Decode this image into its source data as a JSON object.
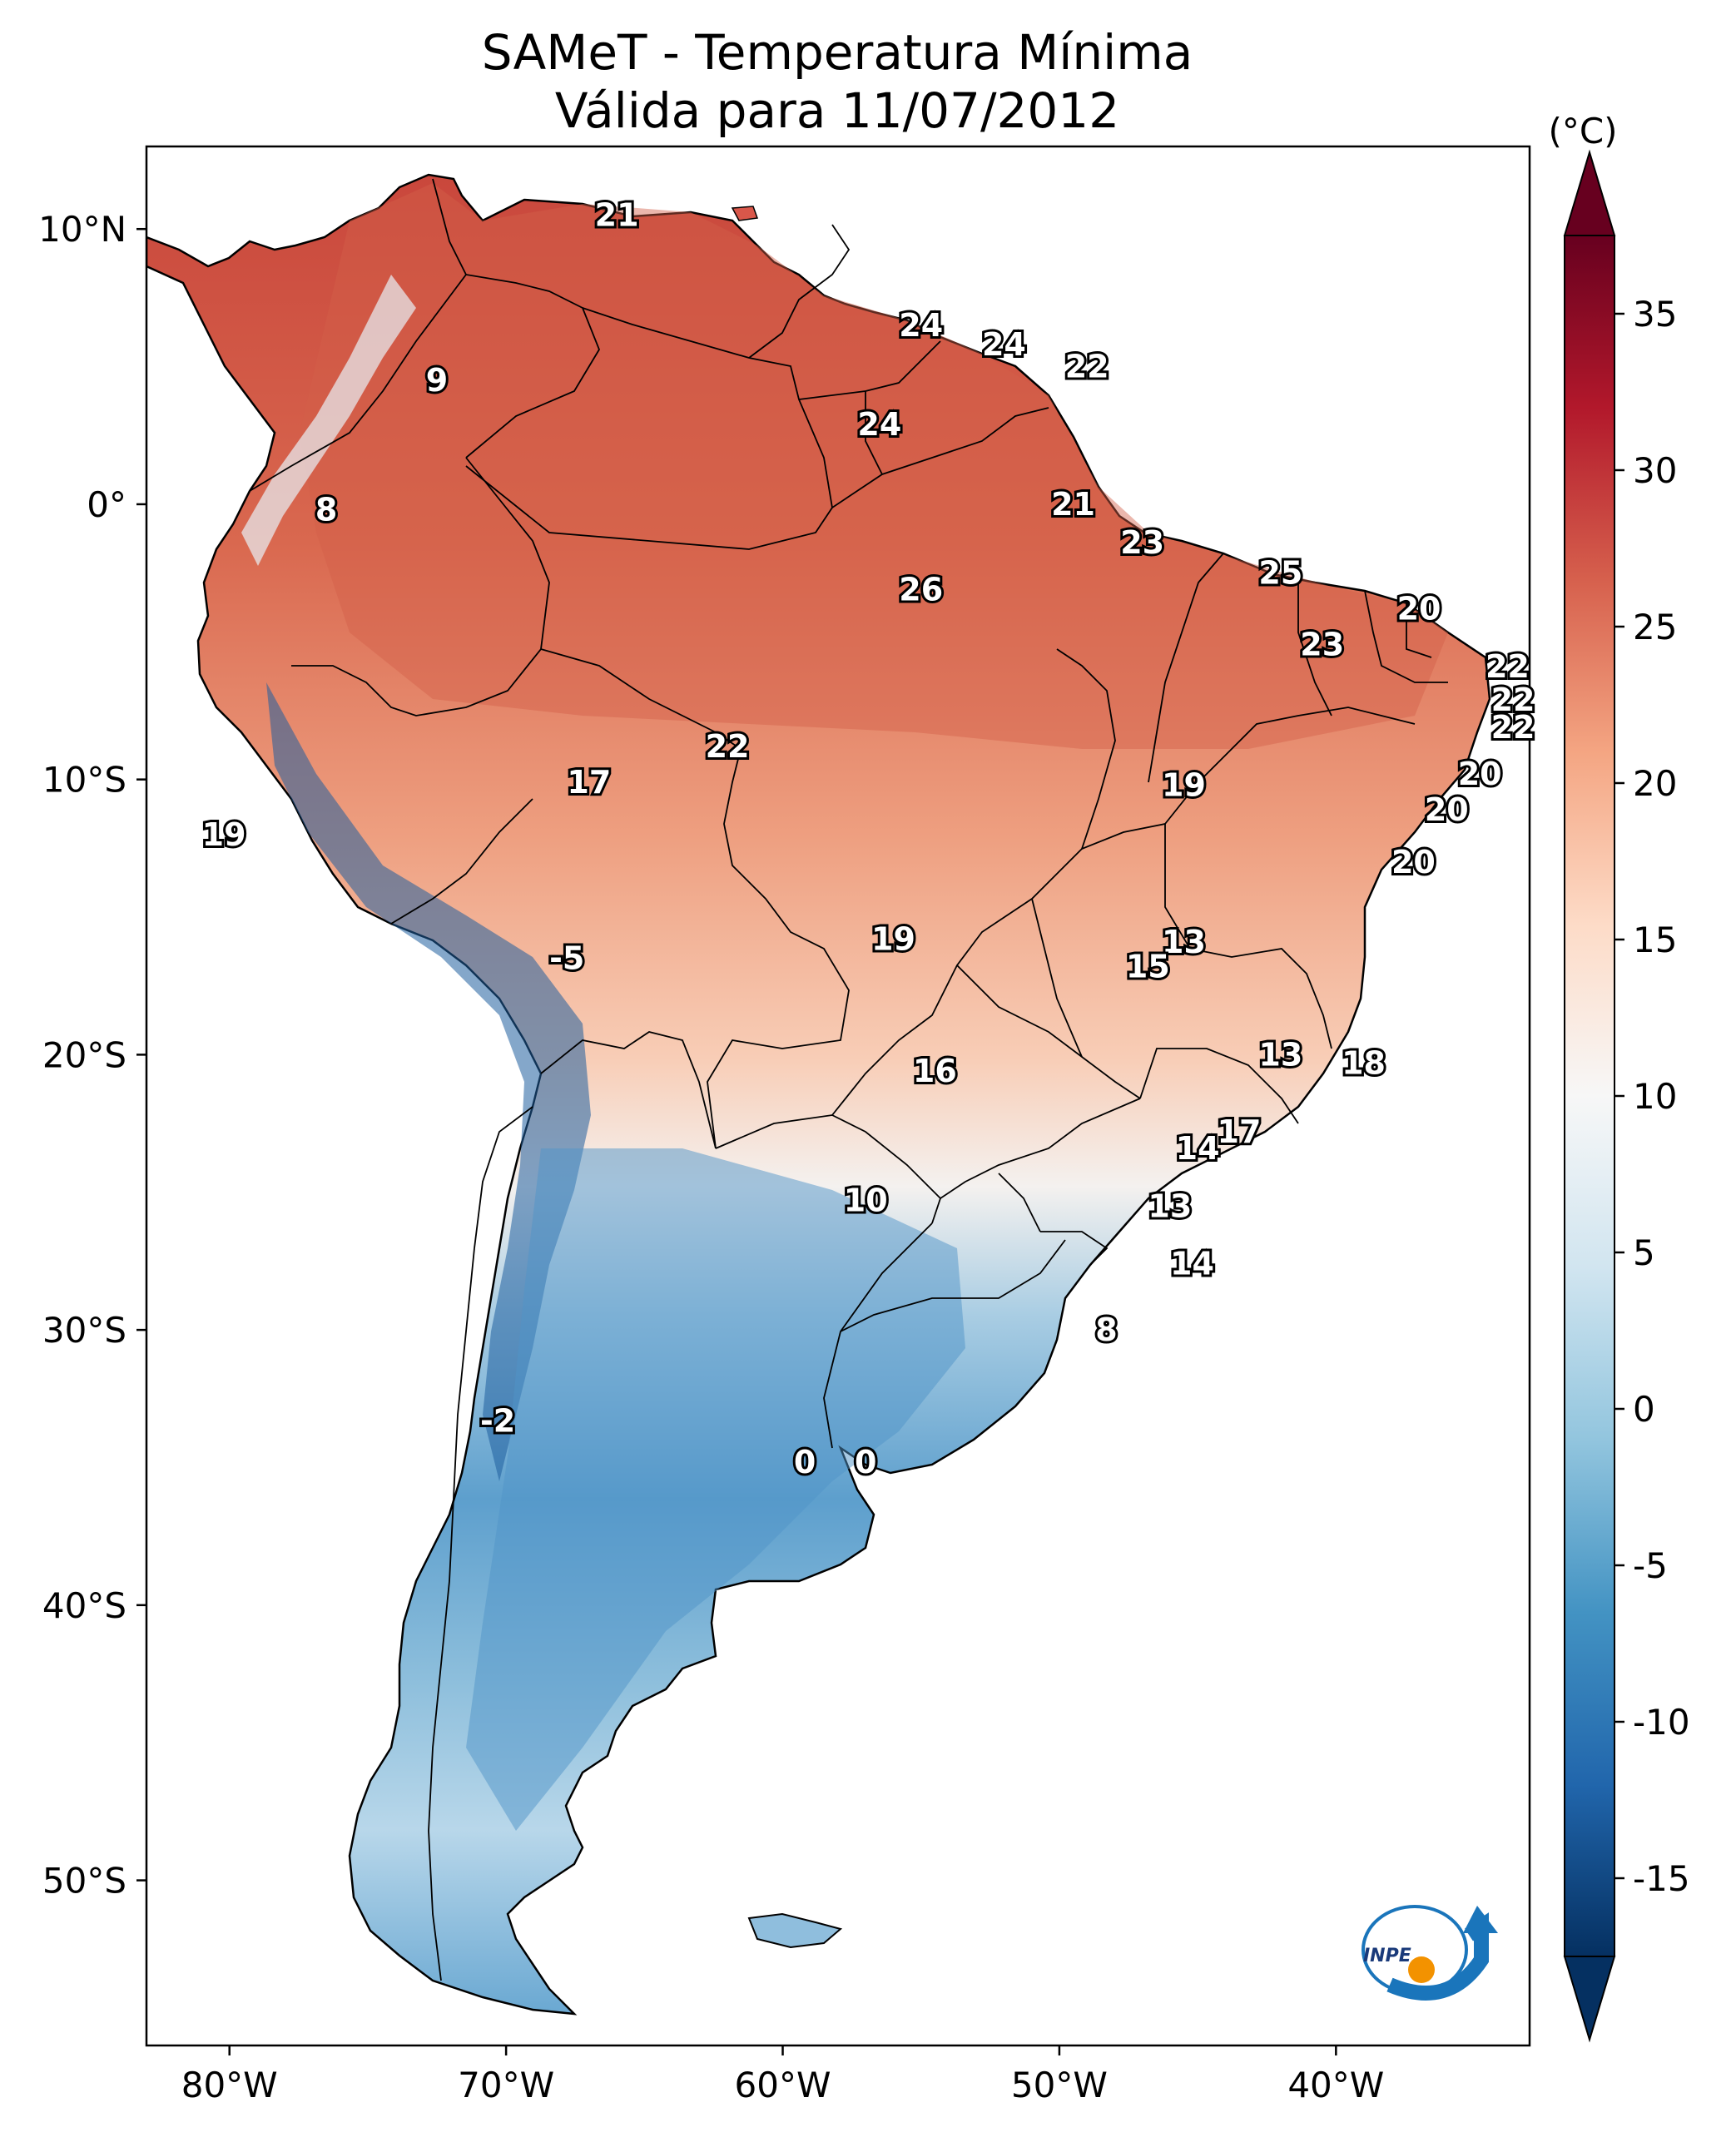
{
  "title": {
    "line1": "SAMeT - Temperatura Mínima",
    "line2": "Válida para 11/07/2012"
  },
  "map": {
    "lon_range": [
      -83,
      -33
    ],
    "lat_range": [
      -56,
      13
    ],
    "lon_ticks": [
      "80°W",
      "70°W",
      "60°W",
      "50°W",
      "40°W"
    ],
    "lat_ticks": [
      "10°N",
      "0°",
      "10°S",
      "20°S",
      "30°S",
      "40°S",
      "50°S"
    ],
    "station_values": [
      {
        "lon": -66.0,
        "lat": 10.5,
        "value": "21"
      },
      {
        "lon": -55.0,
        "lat": 6.5,
        "value": "24"
      },
      {
        "lon": -52.0,
        "lat": 5.8,
        "value": "24"
      },
      {
        "lon": -49.0,
        "lat": 5.0,
        "value": "22"
      },
      {
        "lon": -72.5,
        "lat": 4.5,
        "value": "9"
      },
      {
        "lon": -56.5,
        "lat": 2.9,
        "value": "24"
      },
      {
        "lon": -76.5,
        "lat": -0.2,
        "value": "8"
      },
      {
        "lon": -49.5,
        "lat": 0.0,
        "value": "21"
      },
      {
        "lon": -47.0,
        "lat": -1.4,
        "value": "23"
      },
      {
        "lon": -55.0,
        "lat": -3.1,
        "value": "26"
      },
      {
        "lon": -42.0,
        "lat": -2.5,
        "value": "25"
      },
      {
        "lon": -37.0,
        "lat": -3.8,
        "value": "20"
      },
      {
        "lon": -40.5,
        "lat": -5.1,
        "value": "23"
      },
      {
        "lon": -33.8,
        "lat": -5.9,
        "value": "22"
      },
      {
        "lon": -33.6,
        "lat": -7.1,
        "value": "22"
      },
      {
        "lon": -33.6,
        "lat": -8.1,
        "value": "22"
      },
      {
        "lon": -62.0,
        "lat": -8.8,
        "value": "22"
      },
      {
        "lon": -67.0,
        "lat": -10.1,
        "value": "17"
      },
      {
        "lon": -45.5,
        "lat": -10.2,
        "value": "19"
      },
      {
        "lon": -34.8,
        "lat": -9.8,
        "value": "20"
      },
      {
        "lon": -36.0,
        "lat": -11.1,
        "value": "20"
      },
      {
        "lon": -37.2,
        "lat": -13.0,
        "value": "20"
      },
      {
        "lon": -80.2,
        "lat": -12.0,
        "value": "19"
      },
      {
        "lon": -56.0,
        "lat": -15.8,
        "value": "19"
      },
      {
        "lon": -45.5,
        "lat": -15.9,
        "value": "13"
      },
      {
        "lon": -46.8,
        "lat": -16.8,
        "value": "15"
      },
      {
        "lon": -67.8,
        "lat": -16.5,
        "value": "-5"
      },
      {
        "lon": -54.5,
        "lat": -20.6,
        "value": "16"
      },
      {
        "lon": -42.0,
        "lat": -20.0,
        "value": "13"
      },
      {
        "lon": -39.0,
        "lat": -20.3,
        "value": "18"
      },
      {
        "lon": -43.5,
        "lat": -22.8,
        "value": "17"
      },
      {
        "lon": -45.0,
        "lat": -23.4,
        "value": "14"
      },
      {
        "lon": -57.0,
        "lat": -25.3,
        "value": "10"
      },
      {
        "lon": -46.0,
        "lat": -25.5,
        "value": "13"
      },
      {
        "lon": -45.2,
        "lat": -27.6,
        "value": "14"
      },
      {
        "lon": -48.3,
        "lat": -30.0,
        "value": "8"
      },
      {
        "lon": -70.3,
        "lat": -33.3,
        "value": "-2"
      },
      {
        "lon": -59.2,
        "lat": -34.8,
        "value": "0"
      },
      {
        "lon": -57.0,
        "lat": -34.8,
        "value": "0"
      }
    ]
  },
  "colorbar": {
    "unit": "(°C)",
    "ticks": [
      "35",
      "30",
      "25",
      "20",
      "15",
      "10",
      "5",
      "0",
      "-5",
      "-10",
      "-15"
    ],
    "tick_values": [
      35,
      30,
      25,
      20,
      15,
      10,
      5,
      0,
      -5,
      -10,
      -15
    ],
    "range": [
      -17.5,
      37.5
    ],
    "colors": [
      "#053061",
      "#2166ac",
      "#4393c3",
      "#92c5de",
      "#d1e5f0",
      "#f7f7f7",
      "#fddbc7",
      "#f4a582",
      "#d6604d",
      "#b2182b",
      "#67001f"
    ]
  },
  "logo": {
    "text": "INPE",
    "colors": {
      "blue": "#1a75bb",
      "orange": "#f39200"
    }
  }
}
